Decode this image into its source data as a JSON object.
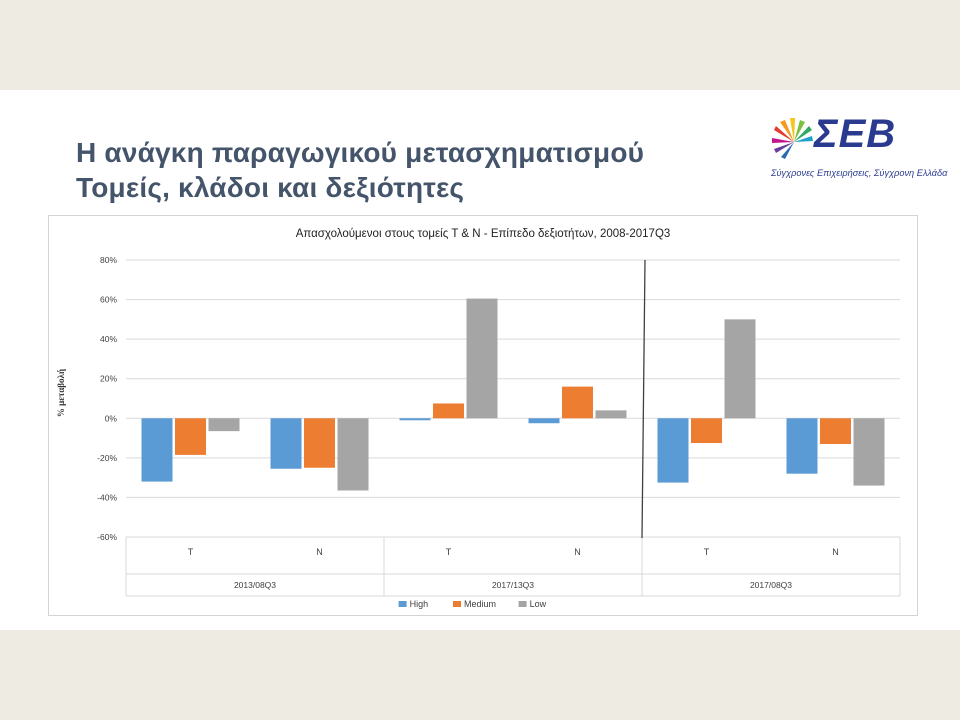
{
  "slide": {
    "title_line1": "Η ανάγκη παραγωγικού μετασχηματισμού",
    "title_line2": "Τομείς, κλάδοι και δεξιότητες",
    "logo": {
      "name": "ΣΕΒ",
      "tagline": "Σύγχρονες Επιχειρήσεις, Σύγχρονη Ελλάδα",
      "color": "#2a3b8f"
    }
  },
  "chart_data": {
    "type": "bar",
    "title": "Απασχολούμενοι στους τομείς T & N - Επίπεδο δεξιοτήτων, 2008-2017Q3",
    "ylabel": "% μεταβολή",
    "xlabel": "",
    "ylim": [
      -0.6,
      0.8
    ],
    "yticks": [
      0.8,
      0.6,
      0.4,
      0.2,
      0,
      -0.2,
      -0.4,
      -0.6
    ],
    "ytick_labels": [
      "80%",
      "60%",
      "40%",
      "20%",
      "0%",
      "-20%",
      "-40%",
      "-60%"
    ],
    "grid": true,
    "legend_position": "bottom",
    "groups": [
      {
        "label": "2013/08Q3",
        "categories": [
          "T",
          "N"
        ]
      },
      {
        "label": "2017/13Q3",
        "categories": [
          "T",
          "N"
        ]
      },
      {
        "label": "2017/08Q3",
        "categories": [
          "T",
          "N"
        ]
      }
    ],
    "categories": [
      "T",
      "N",
      "T",
      "N",
      "T",
      "N"
    ],
    "series": [
      {
        "name": "High",
        "color": "#5b9bd5",
        "values": [
          -0.32,
          -0.255,
          -0.01,
          -0.025,
          -0.325,
          -0.28
        ]
      },
      {
        "name": "Medium",
        "color": "#ed7d31",
        "values": [
          -0.185,
          -0.25,
          0.075,
          0.16,
          -0.125,
          -0.13
        ]
      },
      {
        "name": "Low",
        "color": "#a5a5a5",
        "values": [
          -0.065,
          -0.365,
          0.605,
          0.04,
          0.5,
          -0.34
        ]
      }
    ],
    "annotations": [
      "vertical separator line between 2017/13Q3 and 2017/08Q3"
    ]
  }
}
